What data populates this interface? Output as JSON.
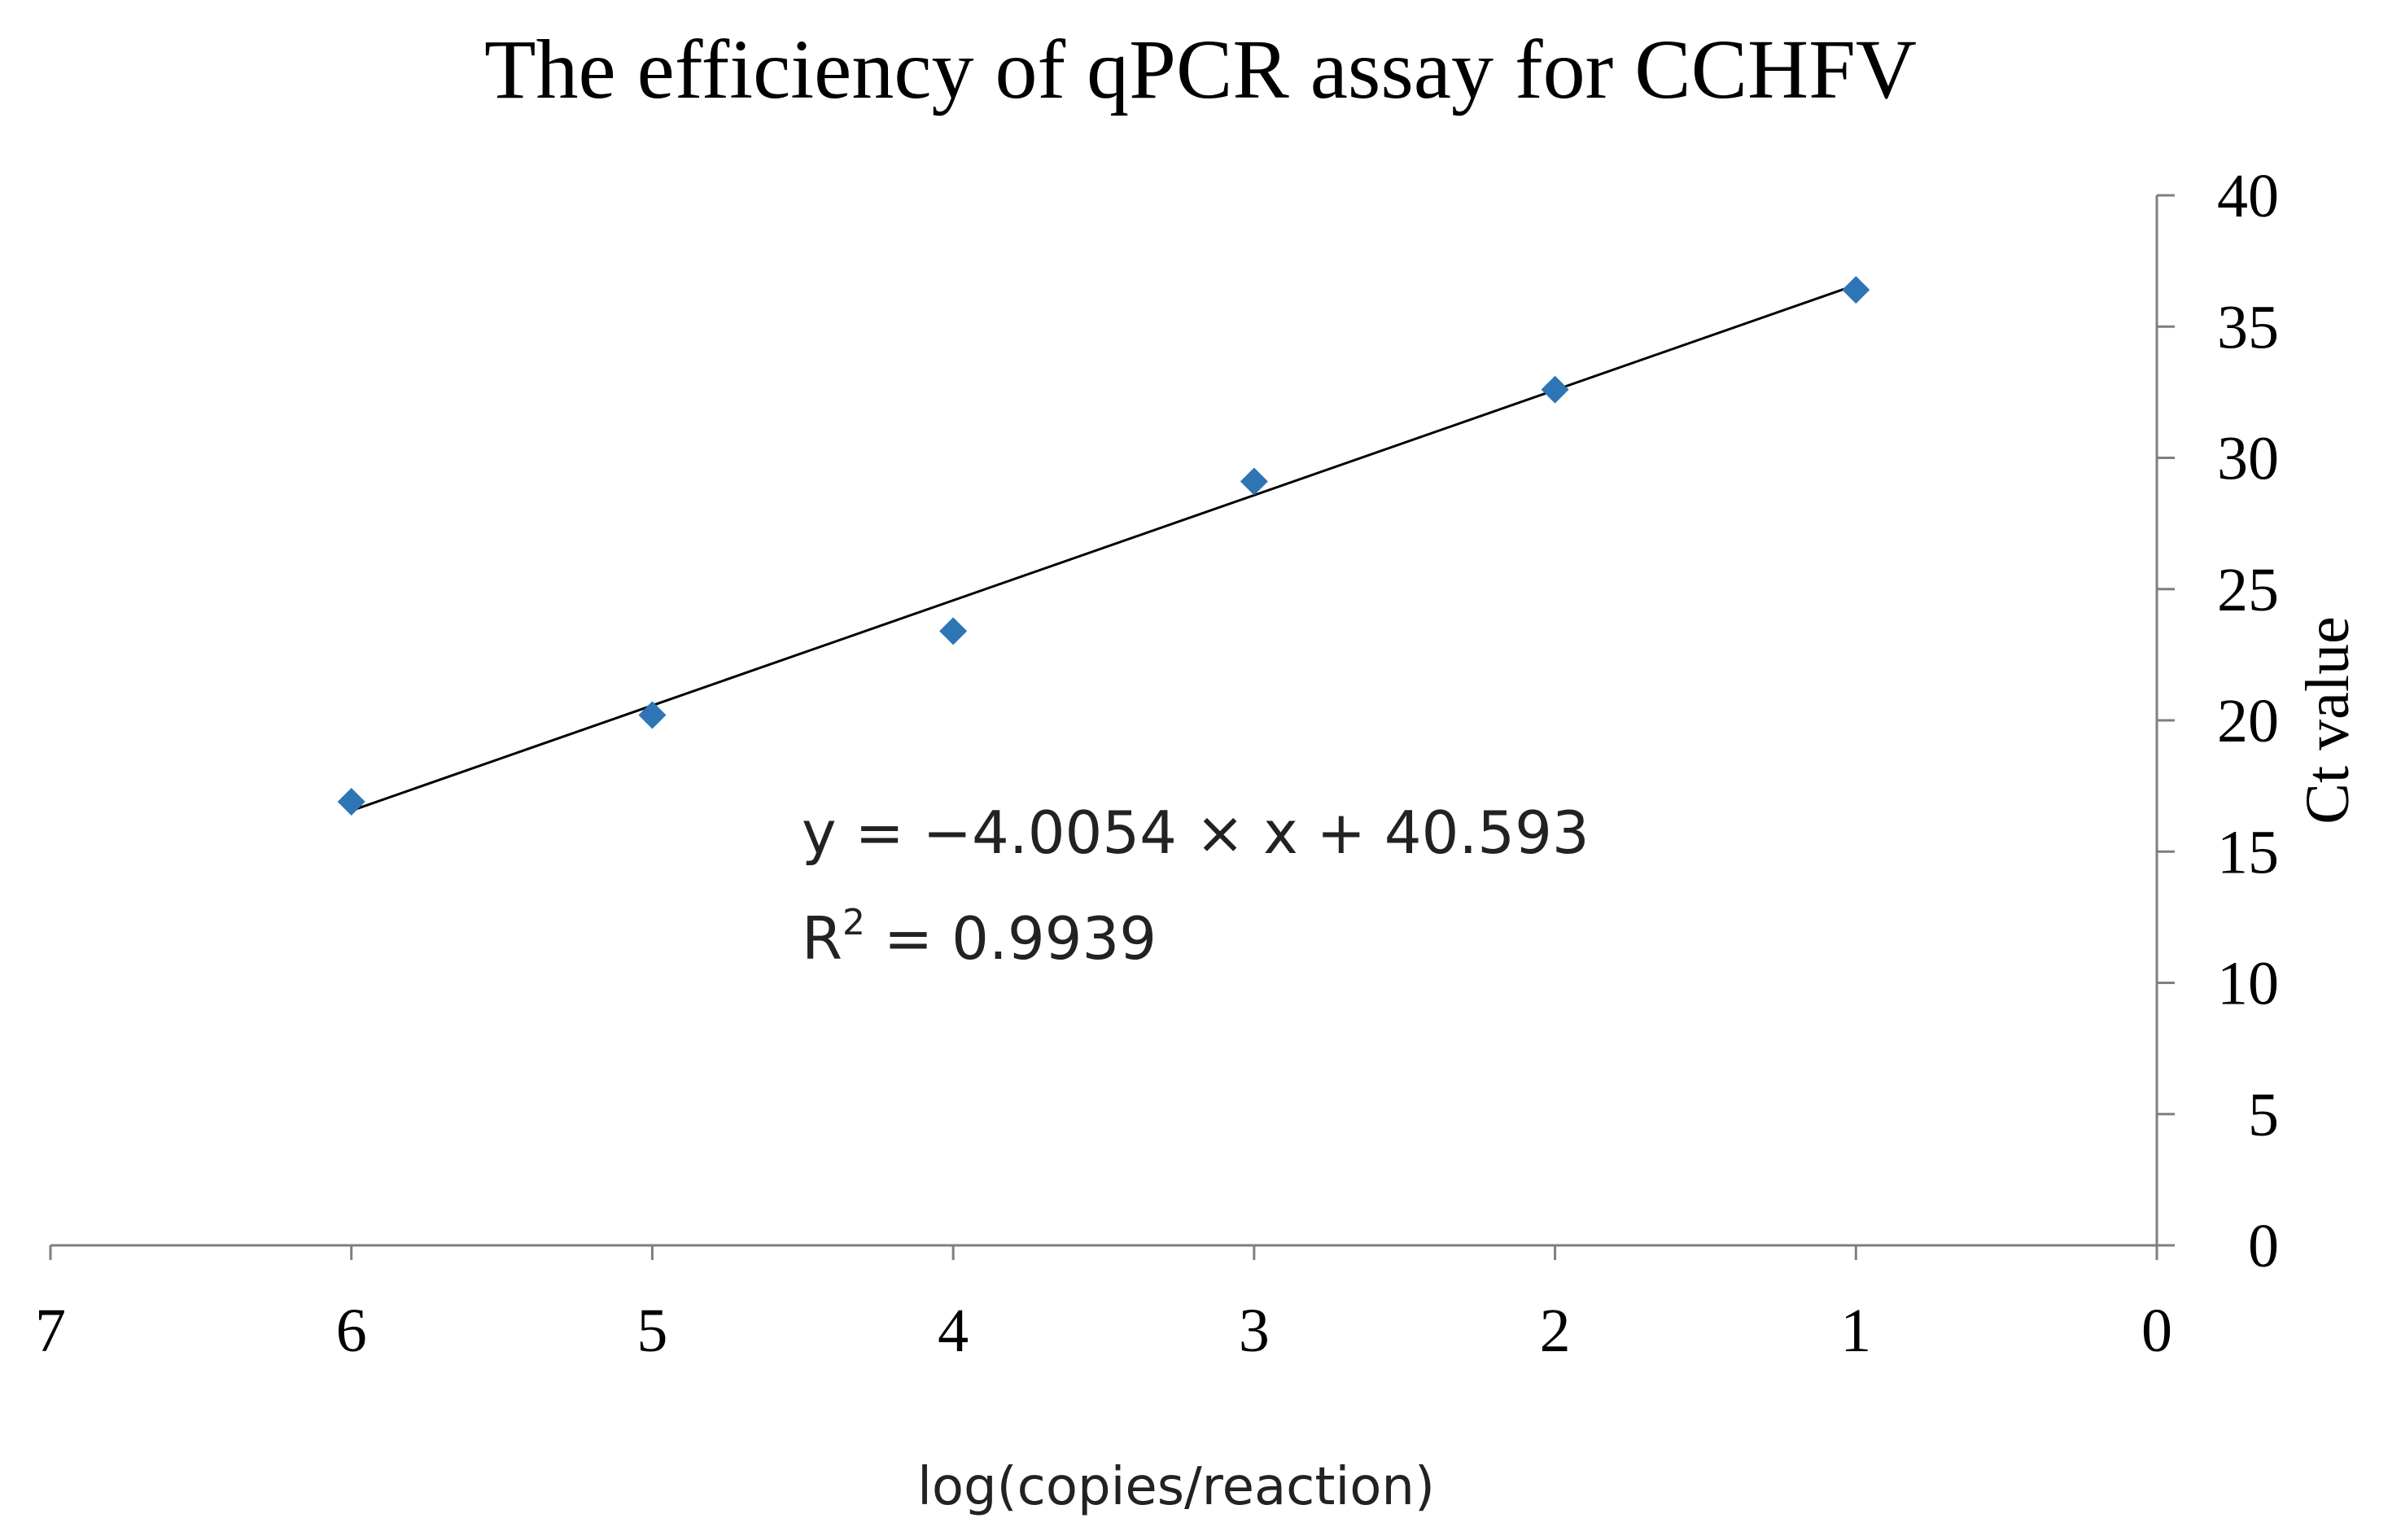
{
  "chart_data": {
    "type": "scatter",
    "title": "The efficiency of qPCR assay for CCHFV",
    "xlabel": "log(copies/reaction)",
    "ylabel": "Ct value",
    "xlim": [
      7,
      0
    ],
    "x_reversed": true,
    "ylim": [
      0,
      40
    ],
    "x_ticks": [
      7,
      6,
      5,
      4,
      3,
      2,
      1,
      0
    ],
    "y_ticks": [
      0,
      5,
      10,
      15,
      20,
      25,
      30,
      35,
      40
    ],
    "y_axis_side": "right",
    "grid": false,
    "legend": "none",
    "marker": "diamond",
    "marker_color": "#2e75b6",
    "trendline_color": "#000000",
    "points": [
      {
        "x": 6,
        "y": 16.9
      },
      {
        "x": 5,
        "y": 20.2
      },
      {
        "x": 4,
        "y": 23.4
      },
      {
        "x": 3,
        "y": 29.1
      },
      {
        "x": 2,
        "y": 32.6
      },
      {
        "x": 1,
        "y": 36.4
      }
    ],
    "trendline": {
      "slope": -4.0054,
      "intercept": 40.593,
      "x_range": [
        6,
        1
      ]
    },
    "annotations": {
      "equation": "y = −4.0054 × x + 40.593",
      "r_squared_label": "R",
      "r_squared_exponent": "2",
      "r_squared_value": " = 0.9939"
    }
  }
}
